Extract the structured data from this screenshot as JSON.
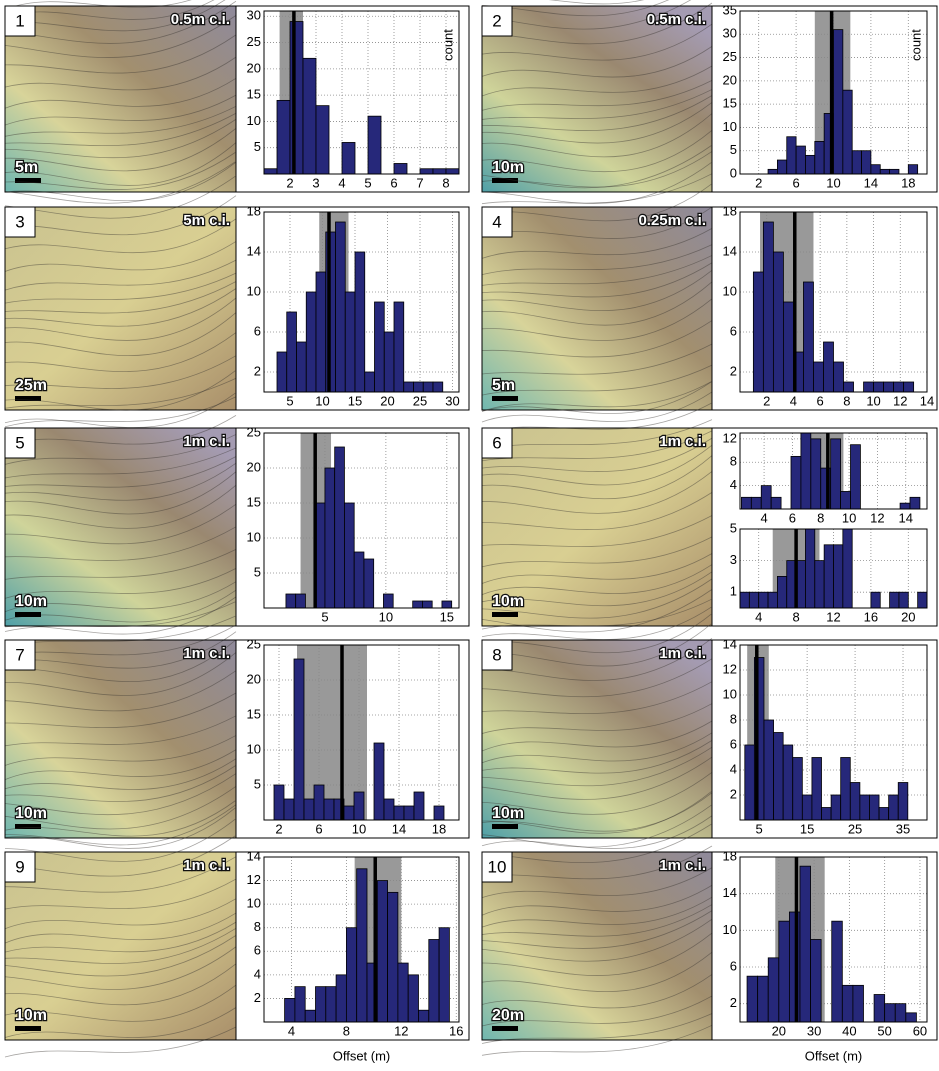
{
  "chart_data": [
    {
      "type": "histogram",
      "panel": "1",
      "contour_interval": "0.5m c.i.",
      "scale_bar": "5m",
      "y_label": "count",
      "bins": [
        1,
        1.5,
        2,
        2.5,
        3,
        3.5,
        4,
        4.5,
        5,
        5.5,
        6,
        6.5,
        7,
        7.5,
        8,
        8.5
      ],
      "values": [
        1,
        14,
        29,
        22,
        13,
        0,
        6,
        0,
        11,
        0,
        2,
        0,
        1,
        1,
        1
      ],
      "xlim": [
        1,
        8.5
      ],
      "xticks": [
        2,
        3,
        4,
        5,
        6,
        7,
        8
      ],
      "ylim": [
        0,
        31
      ],
      "yticks": [
        5,
        10,
        15,
        20,
        25,
        30
      ],
      "shaded_range": [
        1.6,
        2.5
      ],
      "mean_line": 2.15,
      "color": "#26287a",
      "grid": true
    },
    {
      "type": "histogram",
      "panel": "2",
      "contour_interval": "0.5m c.i.",
      "scale_bar": "10m",
      "y_label": "count",
      "bins": [
        3,
        4,
        5,
        6,
        7,
        8,
        9,
        10,
        11,
        12,
        13,
        14,
        15,
        16,
        17,
        18,
        19
      ],
      "values": [
        1,
        3,
        8,
        6,
        4,
        7,
        13,
        31,
        18,
        5,
        5,
        2,
        1,
        1,
        0,
        2
      ],
      "xlim": [
        0,
        20
      ],
      "xticks": [
        2,
        6,
        10,
        14,
        18
      ],
      "ylim": [
        0,
        35
      ],
      "yticks": [
        0,
        5,
        10,
        15,
        20,
        25,
        30,
        35
      ],
      "shaded_range": [
        8,
        11.8
      ],
      "mean_line": 9.8,
      "color": "#26287a",
      "grid": true
    },
    {
      "type": "histogram",
      "panel": "3",
      "contour_interval": "5m c.i.",
      "scale_bar": "25m",
      "bins": [
        3,
        4.5,
        6,
        7.5,
        9,
        10.5,
        12,
        13.5,
        15,
        16.5,
        18,
        19.5,
        21,
        22.5,
        24,
        25.5,
        27,
        28.5
      ],
      "values": [
        4,
        8,
        5,
        10,
        12,
        16,
        17,
        10,
        14,
        2,
        9,
        6,
        9,
        1,
        1,
        1,
        1
      ],
      "xlim": [
        1,
        31
      ],
      "xticks": [
        5,
        10,
        15,
        20,
        25,
        30
      ],
      "ylim": [
        0,
        18
      ],
      "yticks": [
        2,
        6,
        10,
        14,
        18
      ],
      "shaded_range": [
        9.5,
        14
      ],
      "mean_line": 11,
      "color": "#26287a",
      "grid": true
    },
    {
      "type": "histogram",
      "panel": "4",
      "contour_interval": "0.25m c.i.",
      "scale_bar": "5m",
      "bins": [
        1,
        1.75,
        2.5,
        3.25,
        4,
        4.75,
        5.5,
        6.25,
        7,
        7.75,
        8.5,
        9.25,
        10,
        10.75,
        11.5,
        12.25,
        13
      ],
      "values": [
        12,
        17,
        14,
        9,
        4,
        11,
        3,
        5,
        3,
        1,
        0,
        1,
        1,
        1,
        1,
        1
      ],
      "xlim": [
        0,
        14
      ],
      "xticks": [
        2,
        4,
        6,
        8,
        10,
        12,
        14
      ],
      "ylim": [
        0,
        18
      ],
      "yticks": [
        2,
        6,
        10,
        14,
        18
      ],
      "shaded_range": [
        1.5,
        5.5
      ],
      "mean_line": 4.1,
      "color": "#26287a",
      "grid": true
    },
    {
      "type": "histogram",
      "panel": "5",
      "contour_interval": "1m c.i.",
      "scale_bar": "10m",
      "bins": [
        1.8,
        2.6,
        3.4,
        4.2,
        5,
        5.8,
        6.6,
        7.4,
        8.2,
        9,
        9.8,
        10.6,
        11.4,
        12.2,
        13,
        13.8,
        14.6,
        15.4
      ],
      "values": [
        2,
        2,
        0,
        15,
        20,
        23,
        15,
        8,
        7,
        0,
        2,
        0,
        0,
        1,
        1,
        0,
        1
      ],
      "xlim": [
        0,
        16
      ],
      "xticks": [
        5,
        10,
        15
      ],
      "ylim": [
        0,
        25
      ],
      "yticks": [
        5,
        10,
        15,
        20,
        25
      ],
      "shaded_range": [
        3,
        5.5
      ],
      "mean_line": 4.2,
      "color": "#26287a",
      "grid": true
    },
    {
      "type": "histogram",
      "panel": "6",
      "contour_interval": "1m c.i.",
      "scale_bar": "10m",
      "bins": [
        2.4,
        3.1,
        3.8,
        4.5,
        5.2,
        5.9,
        6.6,
        7.3,
        8,
        8.7,
        9.4,
        10.1,
        10.8,
        11.5,
        12.2,
        12.9,
        13.6,
        14.3,
        15
      ],
      "values": [
        2,
        2,
        4,
        2,
        0,
        9,
        13,
        12,
        7,
        12,
        3,
        11,
        0,
        0,
        0,
        0,
        1,
        2
      ],
      "xlim": [
        2.3,
        15.5
      ],
      "xticks": [
        4,
        6,
        8,
        10,
        12,
        14
      ],
      "ylim": [
        0,
        13
      ],
      "yticks": [
        4,
        8,
        12
      ],
      "shaded_range": [
        6.9,
        9.6
      ],
      "mean_line": 8.5,
      "color": "#26287a",
      "grid": true
    },
    {
      "type": "histogram",
      "bins": [
        2,
        3,
        4,
        5,
        6,
        7,
        8,
        9,
        10,
        11,
        12,
        13,
        14,
        15,
        16,
        17,
        18,
        19,
        20,
        21,
        22
      ],
      "values": [
        1,
        1,
        1,
        1,
        2,
        3,
        3,
        5,
        3,
        4,
        4,
        5,
        0,
        0,
        1,
        0,
        1,
        1,
        0,
        1
      ],
      "xlim": [
        2,
        22
      ],
      "xticks": [
        4,
        8,
        12,
        16,
        20
      ],
      "ylim": [
        0,
        5
      ],
      "yticks": [
        1,
        3,
        5
      ],
      "shaded_range": [
        5.5,
        10.5
      ],
      "mean_line": 8,
      "color": "#26287a",
      "grid": true
    },
    {
      "type": "histogram",
      "panel": "7",
      "contour_interval": "1m c.i.",
      "scale_bar": "10m",
      "bins": [
        1.5,
        2.5,
        3.5,
        4.5,
        5.5,
        6.5,
        7.5,
        8.5,
        9.5,
        10.5,
        11.5,
        12.5,
        13.5,
        14.5,
        15.5,
        16.5,
        17.5,
        18.5
      ],
      "values": [
        5,
        3,
        23,
        3,
        5,
        3,
        3,
        2,
        4,
        0,
        11,
        3,
        2,
        2,
        4,
        0,
        2
      ],
      "xlim": [
        0.5,
        20
      ],
      "xticks": [
        2,
        6,
        10,
        14,
        18
      ],
      "ylim": [
        0,
        25
      ],
      "yticks": [
        5,
        10,
        15,
        20,
        25
      ],
      "shaded_range": [
        3.8,
        10.8
      ],
      "mean_line": 8.3,
      "color": "#26287a",
      "grid": true
    },
    {
      "type": "histogram",
      "panel": "8",
      "contour_interval": "1m c.i.",
      "scale_bar": "10m",
      "bins": [
        2,
        4,
        6,
        8,
        10,
        12,
        14,
        16,
        18,
        20,
        22,
        24,
        26,
        28,
        30,
        32,
        34,
        36
      ],
      "values": [
        6,
        13,
        8,
        7,
        6,
        5,
        2,
        5,
        1,
        2,
        5,
        3,
        2,
        2,
        1,
        2,
        3
      ],
      "xlim": [
        1,
        40
      ],
      "xticks": [
        5,
        15,
        25,
        35
      ],
      "ylim": [
        0,
        14
      ],
      "yticks": [
        2,
        4,
        6,
        8,
        10,
        12,
        14
      ],
      "shaded_range": [
        2.5,
        7
      ],
      "mean_line": 4.5,
      "color": "#26287a",
      "grid": true
    },
    {
      "type": "histogram",
      "panel": "9",
      "contour_interval": "1m c.i.",
      "scale_bar": "10m",
      "x_label": "Offset (m)",
      "bins": [
        3.5,
        4.25,
        5,
        5.75,
        6.5,
        7.25,
        8,
        8.75,
        9.5,
        10.25,
        11,
        11.75,
        12.5,
        13.25,
        14,
        14.75,
        15.5
      ],
      "values": [
        2,
        3,
        1,
        3,
        3,
        4,
        8,
        13,
        5,
        12,
        11,
        5,
        4,
        1,
        7,
        8
      ],
      "xlim": [
        2,
        16.2
      ],
      "xticks": [
        4,
        8,
        12,
        16
      ],
      "ylim": [
        0,
        14
      ],
      "yticks": [
        2,
        4,
        6,
        8,
        10,
        12,
        14
      ],
      "shaded_range": [
        8.6,
        12
      ],
      "mean_line": 10.1,
      "color": "#26287a",
      "grid": true
    },
    {
      "type": "histogram",
      "panel": "10",
      "contour_interval": "1m c.i.",
      "scale_bar": "20m",
      "x_label": "Offset (m)",
      "bins": [
        11,
        14,
        17,
        20,
        23,
        26,
        29,
        32,
        35,
        38,
        41,
        44,
        47,
        50,
        53,
        56,
        59
      ],
      "values": [
        5,
        5,
        7,
        11,
        12,
        17,
        9,
        0,
        11,
        4,
        4,
        0,
        3,
        2,
        2,
        1
      ],
      "xlim": [
        9,
        62
      ],
      "xticks": [
        20,
        30,
        40,
        50,
        60
      ],
      "ylim": [
        0,
        18
      ],
      "yticks": [
        2,
        6,
        10,
        14,
        18
      ],
      "shaded_range": [
        19,
        33
      ],
      "mean_line": 25,
      "color": "#26287a",
      "grid": true
    }
  ]
}
